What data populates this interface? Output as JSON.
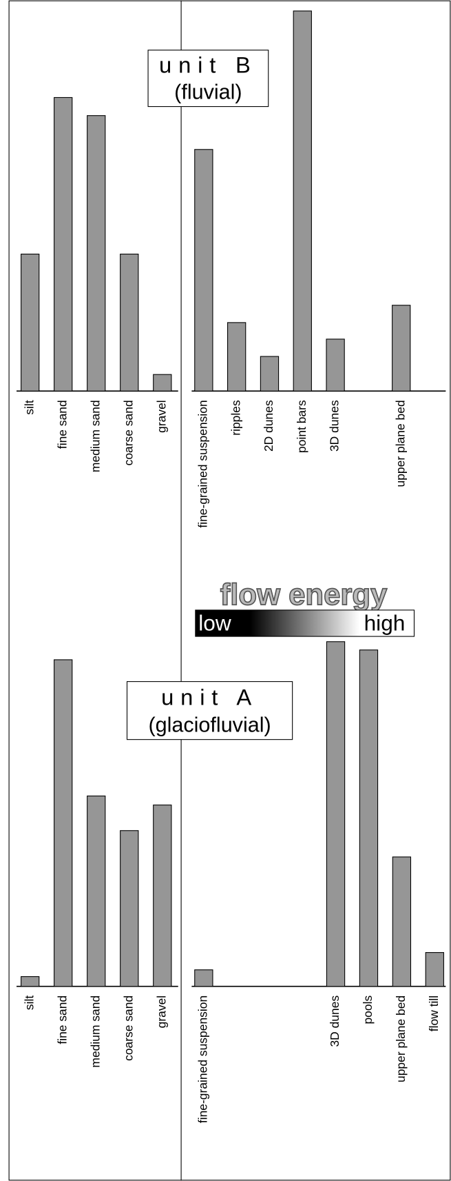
{
  "chart_data": [
    {
      "type": "bar",
      "categories": [
        "silt",
        "fine sand",
        "medium sand",
        "coarse sand",
        "gravel"
      ],
      "values": [
        182,
        390,
        366,
        182,
        22
      ],
      "color": "#969696",
      "ylim": [
        0,
        505
      ]
    },
    {
      "type": "bar",
      "categories": [
        "fine-grained suspension",
        "ripples",
        "2D dunes",
        "point bars",
        "3D dunes",
        null,
        "upper plane bed"
      ],
      "values": [
        321,
        91,
        46,
        505,
        69,
        null,
        114
      ],
      "color": "#969696",
      "ylim": [
        0,
        505
      ]
    },
    {
      "type": "bar",
      "categories": [
        "silt",
        "fine sand",
        "medium sand",
        "coarse sand",
        "gravel"
      ],
      "values": [
        13,
        434,
        253,
        207,
        241
      ],
      "color": "#969696",
      "ylim": [
        0,
        505
      ]
    },
    {
      "type": "bar",
      "categories": [
        "fine-grained suspension",
        null,
        null,
        null,
        "3D dunes",
        "pools",
        "upper plane bed",
        "flow till"
      ],
      "values": [
        22,
        null,
        null,
        null,
        458,
        447,
        172,
        45
      ],
      "color": "#969696",
      "ylim": [
        0,
        505
      ]
    }
  ],
  "annotations": {
    "unit_b_title": "unit B",
    "unit_b_subtitle": "(fluvial)",
    "unit_a_title": "unit A",
    "unit_a_subtitle": "(glaciofluvial)",
    "legend_title": "flow energy",
    "legend_low": "low",
    "legend_high": "high"
  }
}
